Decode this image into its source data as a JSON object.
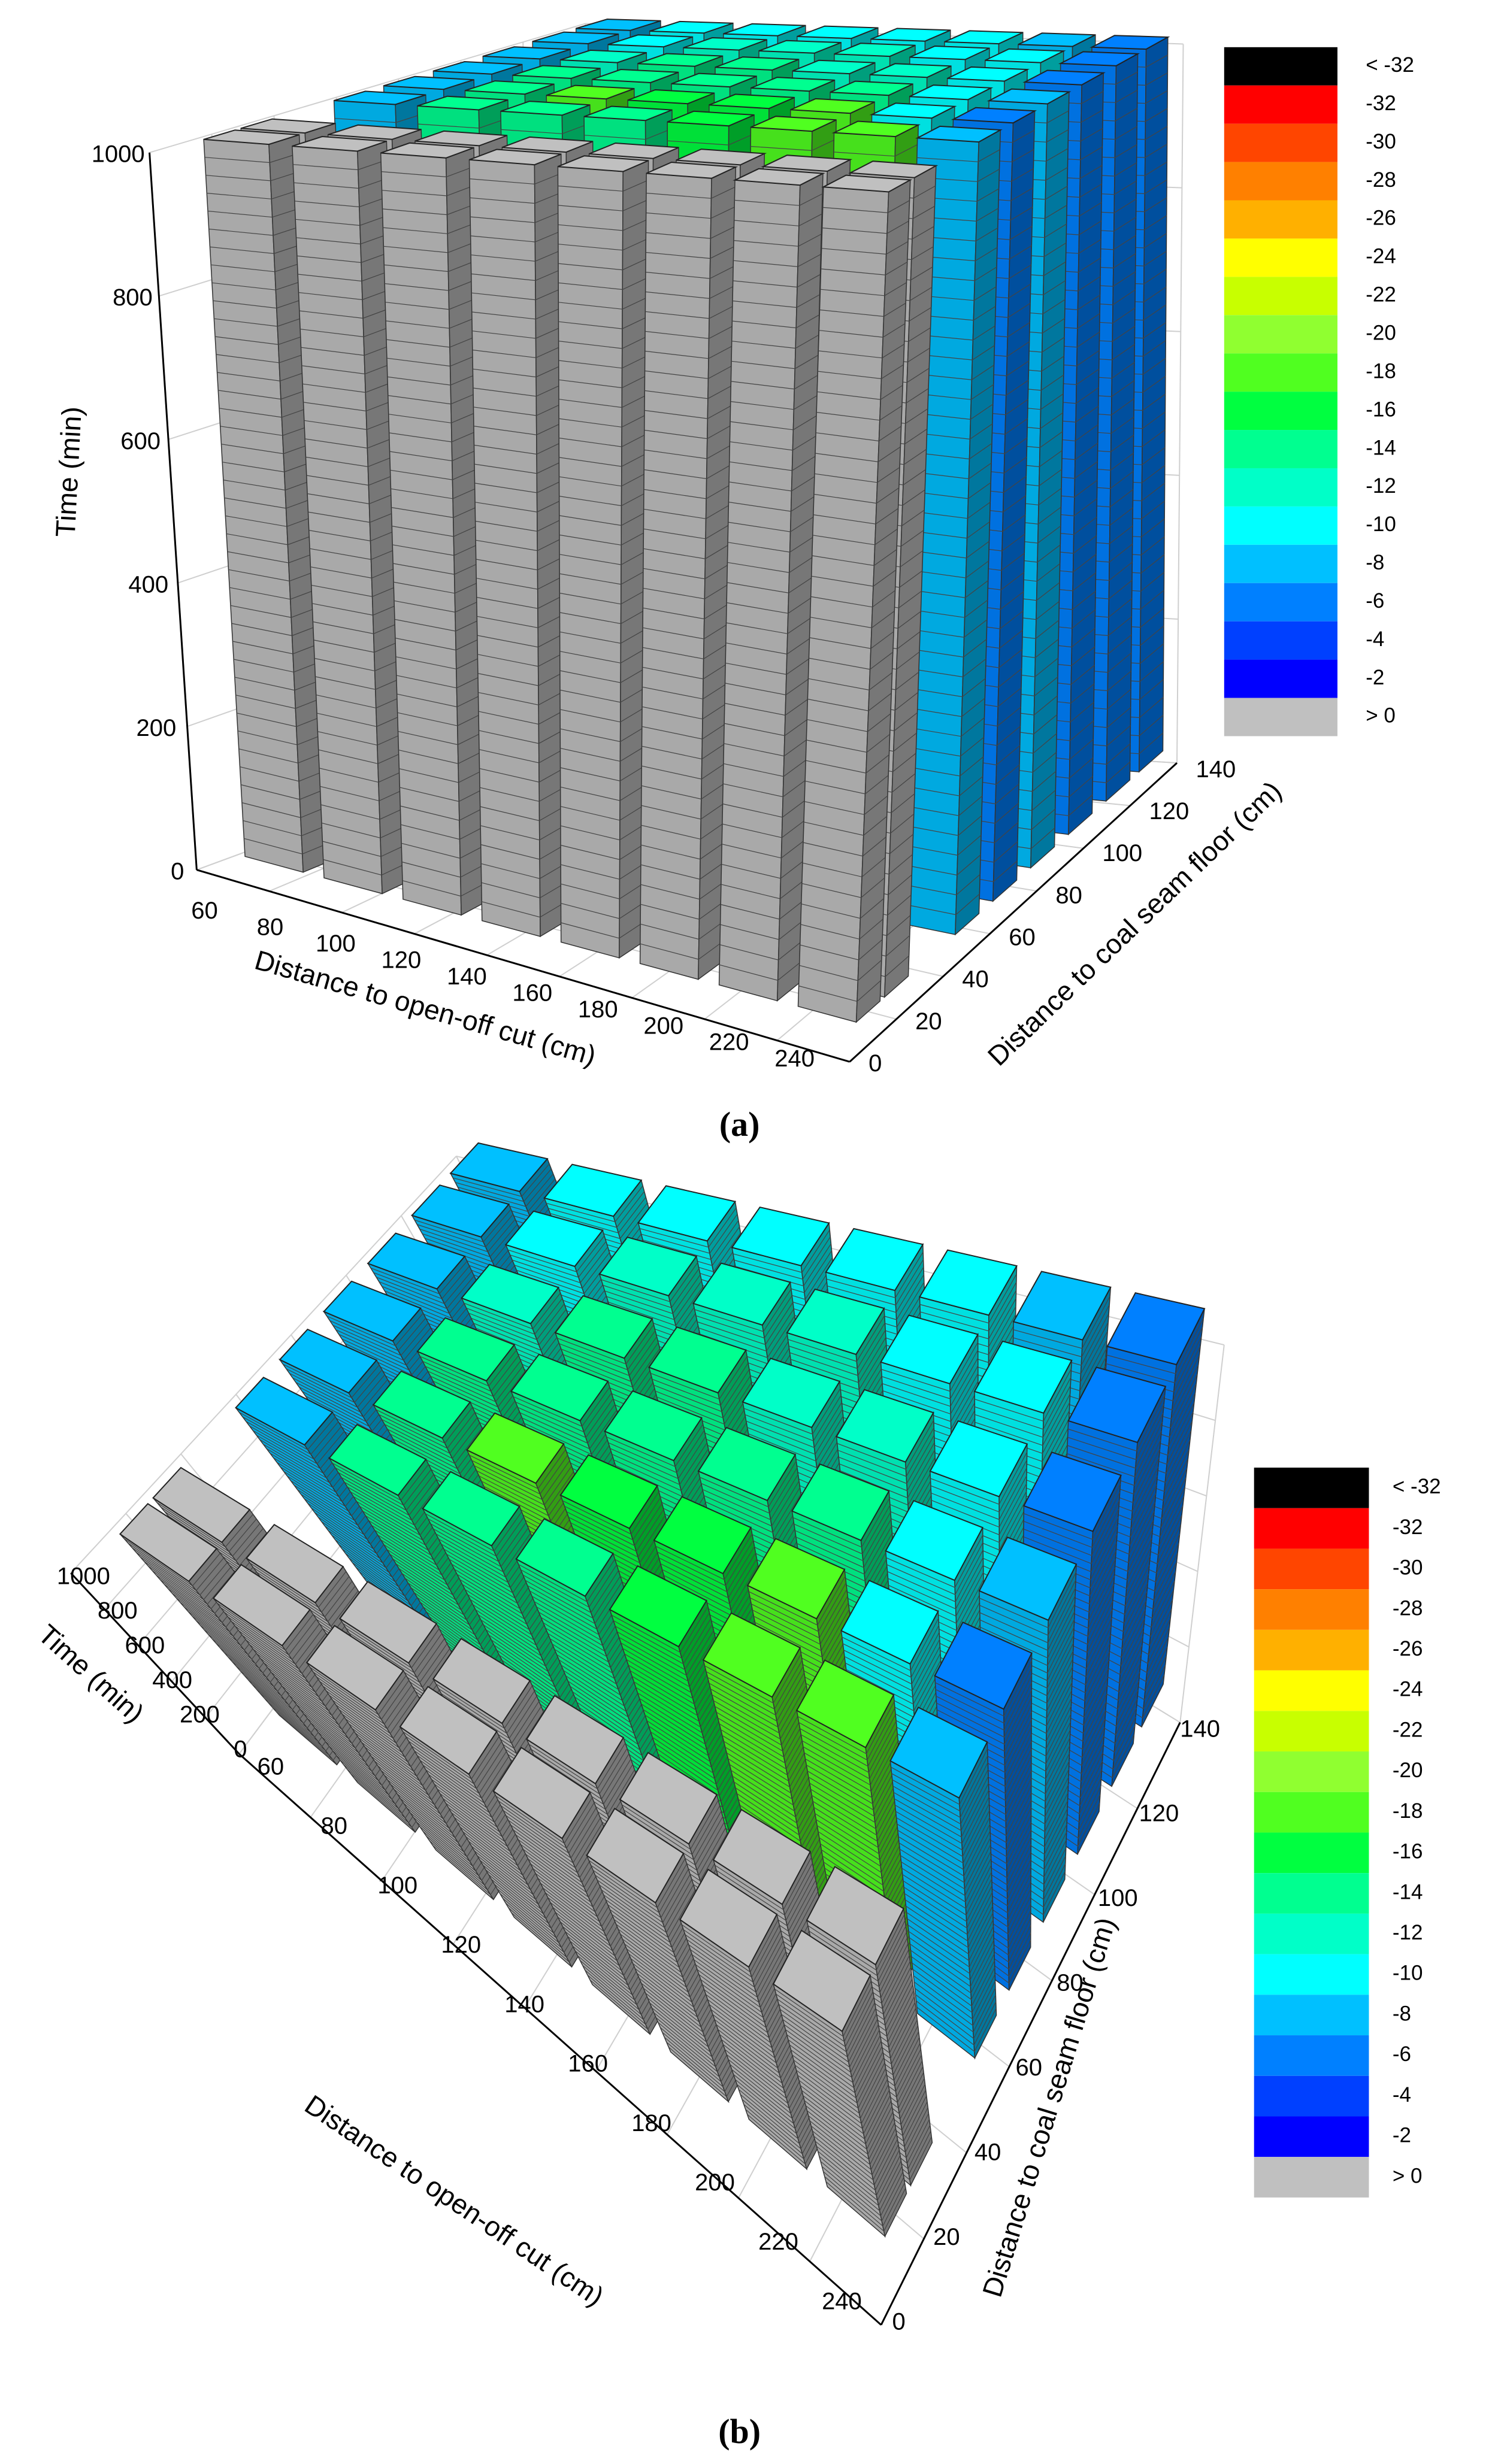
{
  "chart_data": [
    {
      "type": "bar3d",
      "panel_label": "(a)",
      "x_label": "Distance to open-off cut (cm)",
      "y_label": "Distance to coal seam floor (cm)",
      "z_label": "Time (min)",
      "xlim": [
        60,
        240
      ],
      "xticks": [
        60,
        80,
        100,
        120,
        140,
        160,
        180,
        200,
        220,
        240
      ],
      "ylim": [
        0,
        140
      ],
      "yticks": [
        0,
        20,
        40,
        60,
        80,
        100,
        120,
        140
      ],
      "zlim": [
        0,
        1000
      ],
      "zticks": [
        0,
        200,
        400,
        600,
        800,
        1000
      ],
      "grid": true,
      "x": [
        70,
        92,
        114,
        136,
        158,
        180,
        202,
        224
      ],
      "y": [
        20,
        32,
        62,
        78,
        94,
        110,
        126,
        140
      ],
      "values": [
        [
          1,
          1,
          1,
          1,
          1,
          1,
          1,
          1
        ],
        [
          1,
          1,
          1,
          1,
          1,
          1,
          1,
          1
        ],
        [
          -7,
          -13,
          -13,
          -14,
          -15,
          -17,
          -17,
          -7
        ],
        [
          -7,
          -13,
          -17,
          -15,
          -16,
          -17,
          -9,
          -6
        ],
        [
          -7,
          -13,
          -14,
          -13,
          -14,
          -13,
          -9,
          -8
        ],
        [
          -7,
          -11,
          -13,
          -13,
          -11,
          -11,
          -9,
          -5
        ],
        [
          -7,
          -10,
          -12,
          -12,
          -11,
          -10,
          -9,
          -5
        ],
        [
          -7,
          -9,
          -9,
          -9,
          -9,
          -9,
          -7,
          -5
        ]
      ],
      "colorbar": [
        {
          "label": "< -32",
          "color": "#000000"
        },
        {
          "value": -32,
          "color": "#ff0000"
        },
        {
          "value": -30,
          "color": "#ff4500"
        },
        {
          "value": -28,
          "color": "#ff8000"
        },
        {
          "value": -26,
          "color": "#ffb000"
        },
        {
          "value": -24,
          "color": "#ffff00"
        },
        {
          "value": -22,
          "color": "#c8ff00"
        },
        {
          "value": -20,
          "color": "#90ff30"
        },
        {
          "value": -18,
          "color": "#50ff20"
        },
        {
          "value": -16,
          "color": "#00ff40"
        },
        {
          "value": -14,
          "color": "#00ff90"
        },
        {
          "value": -12,
          "color": "#00ffc8"
        },
        {
          "value": -10,
          "color": "#00ffff"
        },
        {
          "value": -8,
          "color": "#00c0ff"
        },
        {
          "value": -6,
          "color": "#0080ff"
        },
        {
          "value": -4,
          "color": "#0040ff"
        },
        {
          "value": -2,
          "color": "#0000ff"
        },
        {
          "label": "> 0",
          "color": "#c0c0c0"
        }
      ]
    },
    {
      "type": "bar3d",
      "panel_label": "(b)",
      "x_label": "Distance to open-off cut (cm)",
      "y_label": "Distance to coal seam floor (cm)",
      "z_label": "Time (min)",
      "xlim": [
        60,
        240
      ],
      "xticks": [
        60,
        80,
        100,
        120,
        140,
        160,
        180,
        200,
        220,
        240
      ],
      "ylim": [
        0,
        140
      ],
      "yticks": [
        0,
        20,
        40,
        60,
        80,
        100,
        120,
        140
      ],
      "zlim": [
        0,
        1000
      ],
      "zticks": [
        0,
        200,
        400,
        600,
        800,
        1000
      ],
      "grid": true,
      "x": [
        70,
        92,
        114,
        136,
        158,
        180,
        202,
        224
      ],
      "y": [
        20,
        32,
        62,
        78,
        94,
        110,
        126,
        140
      ],
      "values": [
        [
          1,
          1,
          1,
          1,
          1,
          1,
          1,
          1
        ],
        [
          1,
          1,
          1,
          1,
          1,
          1,
          1,
          1
        ],
        [
          -7,
          -13,
          -13,
          -14,
          -15,
          -17,
          -17,
          -7
        ],
        [
          -7,
          -13,
          -17,
          -15,
          -16,
          -17,
          -9,
          -6
        ],
        [
          -7,
          -13,
          -14,
          -13,
          -14,
          -13,
          -9,
          -8
        ],
        [
          -7,
          -11,
          -13,
          -13,
          -11,
          -11,
          -9,
          -5
        ],
        [
          -7,
          -10,
          -12,
          -12,
          -11,
          -10,
          -9,
          -5
        ],
        [
          -7,
          -9,
          -9,
          -9,
          -9,
          -9,
          -7,
          -5
        ]
      ],
      "colorbar": [
        {
          "label": "< -32",
          "color": "#000000"
        },
        {
          "value": -32,
          "color": "#ff0000"
        },
        {
          "value": -30,
          "color": "#ff4500"
        },
        {
          "value": -28,
          "color": "#ff8000"
        },
        {
          "value": -26,
          "color": "#ffb000"
        },
        {
          "value": -24,
          "color": "#ffff00"
        },
        {
          "value": -22,
          "color": "#c8ff00"
        },
        {
          "value": -20,
          "color": "#90ff30"
        },
        {
          "value": -18,
          "color": "#50ff20"
        },
        {
          "value": -16,
          "color": "#00ff40"
        },
        {
          "value": -14,
          "color": "#00ff90"
        },
        {
          "value": -12,
          "color": "#00ffc8"
        },
        {
          "value": -10,
          "color": "#00ffff"
        },
        {
          "value": -8,
          "color": "#00c0ff"
        },
        {
          "value": -6,
          "color": "#0080ff"
        },
        {
          "value": -4,
          "color": "#0040ff"
        },
        {
          "value": -2,
          "color": "#0000ff"
        },
        {
          "label": "> 0",
          "color": "#c0c0c0"
        }
      ]
    }
  ]
}
